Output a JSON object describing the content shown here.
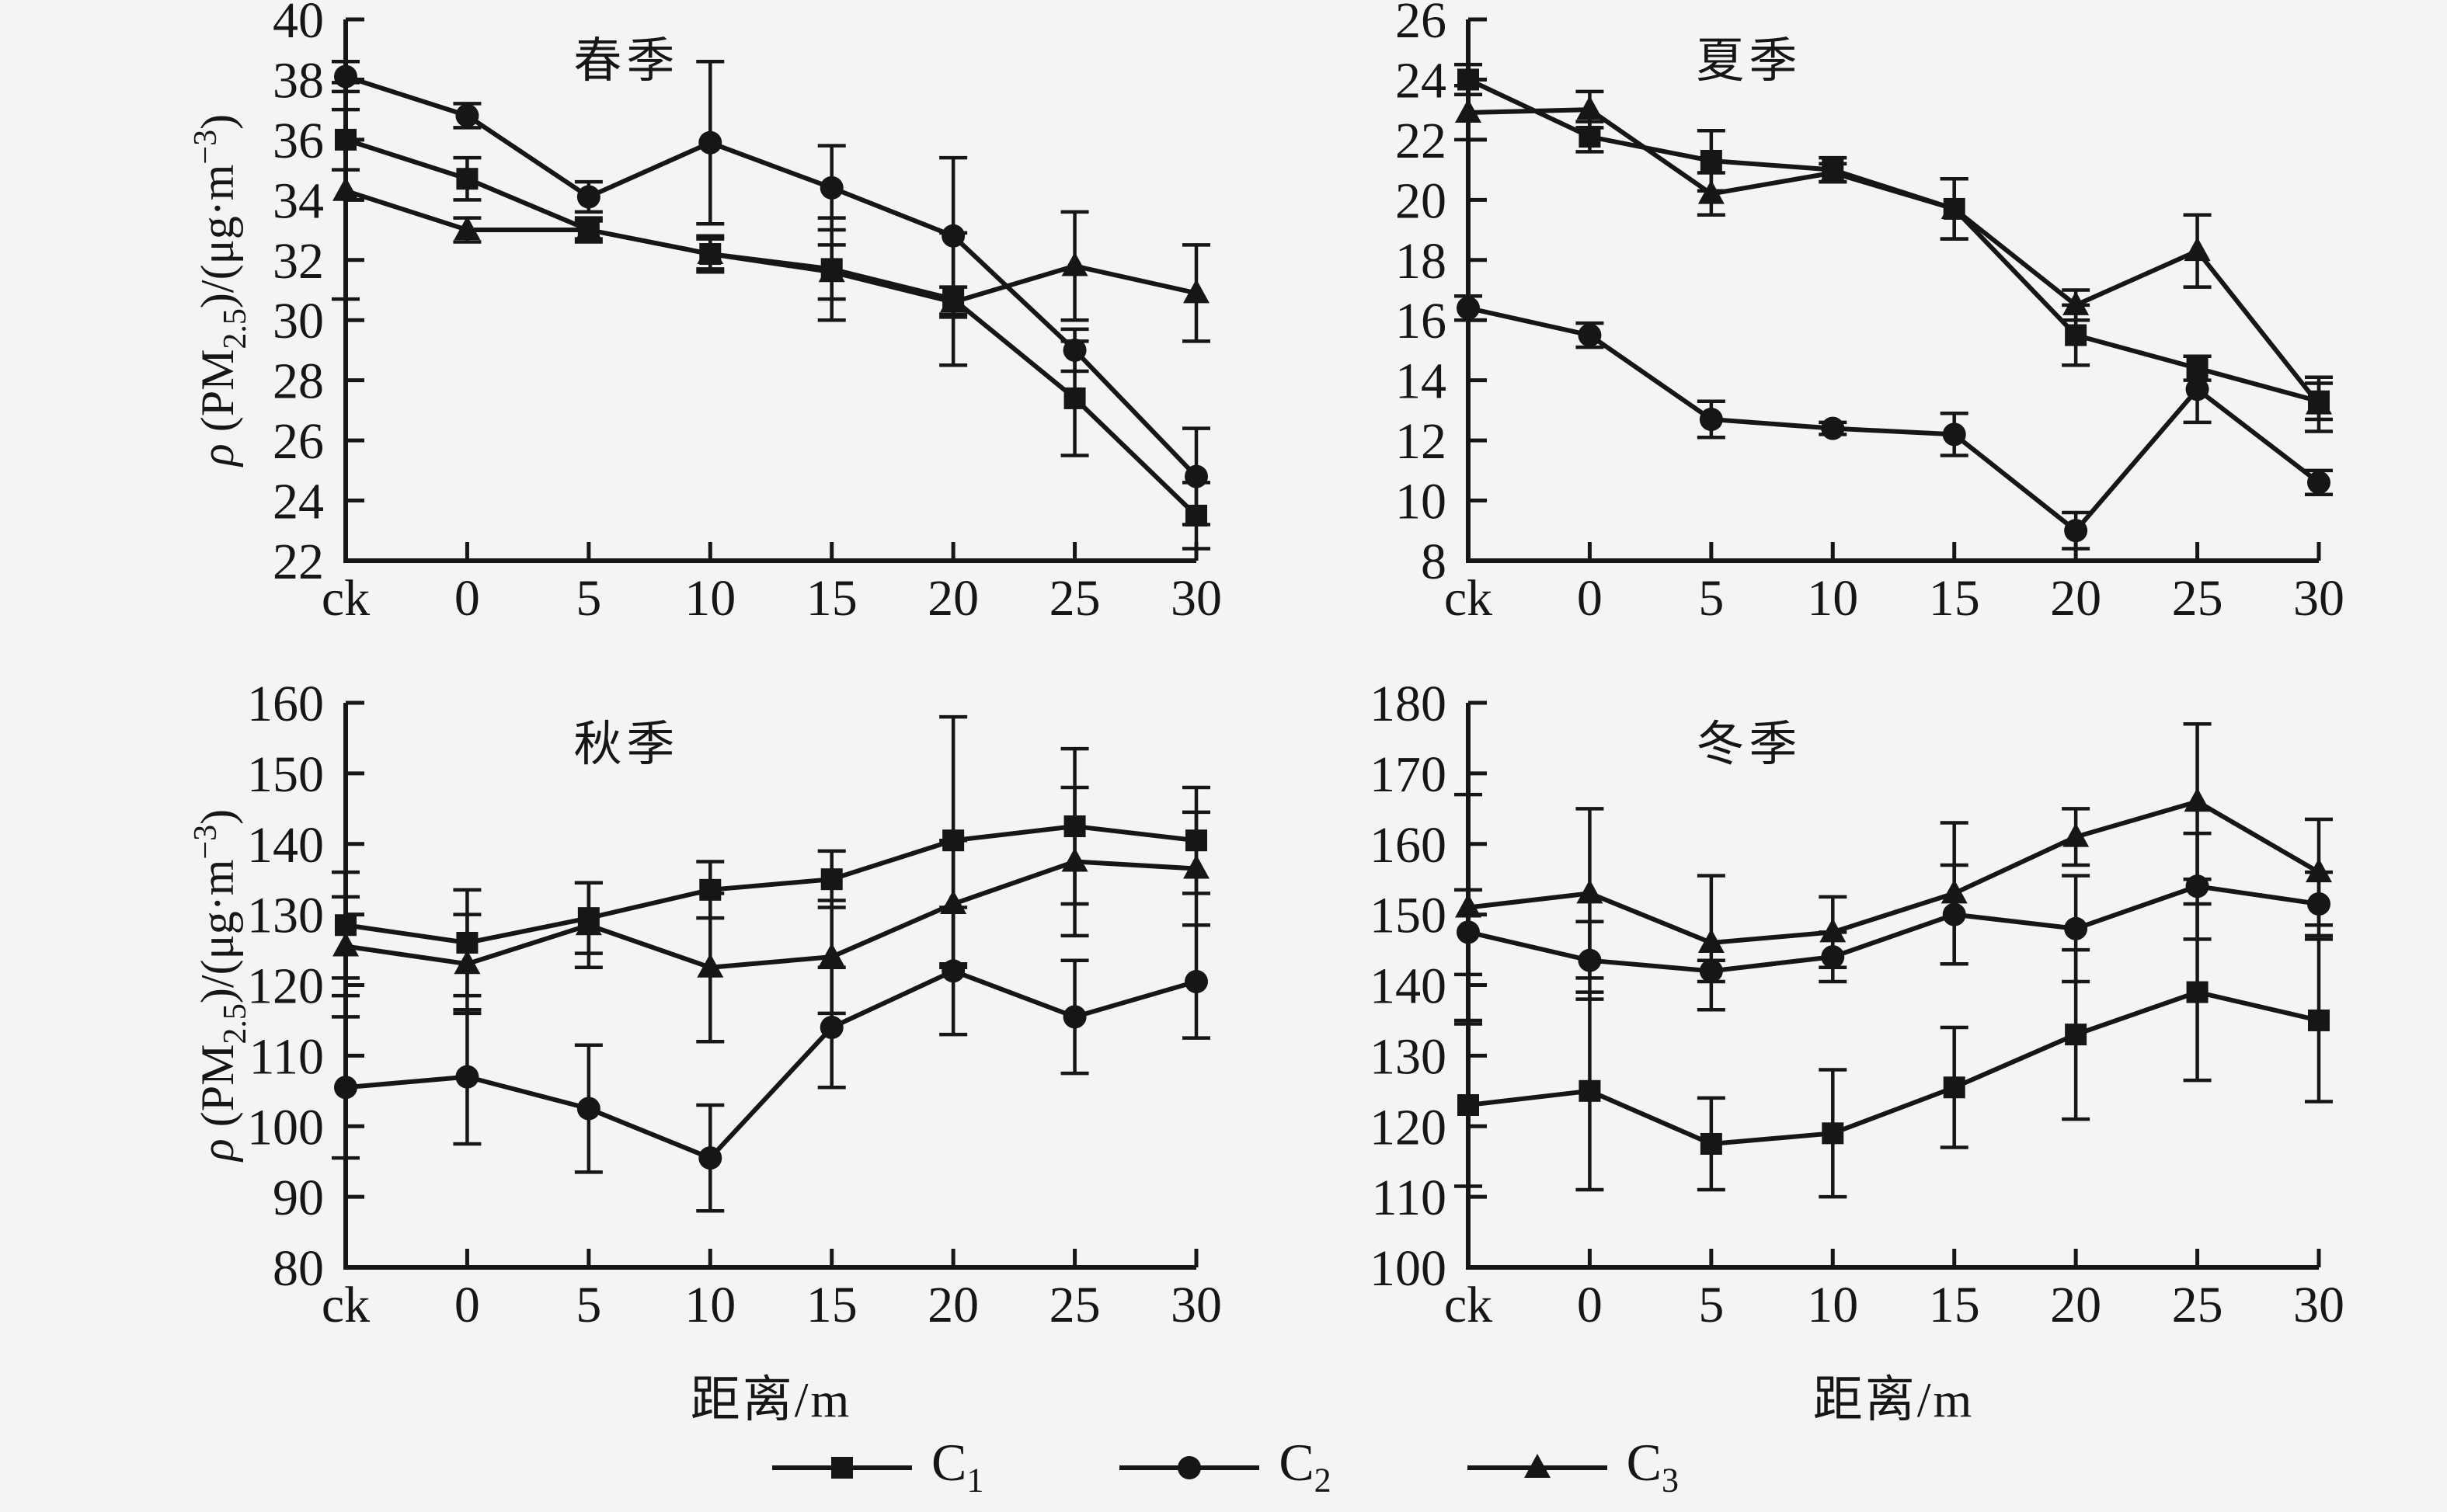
{
  "figure": {
    "xlabel": "距离/m",
    "ylabel": {
      "rho": "ρ",
      "open": " (PM",
      "sub": "2.5",
      "mid": ")/(μg·m",
      "sup": "−3",
      "close": ")"
    },
    "colors": {
      "background": "#f5f4f2",
      "ink": "#161616"
    }
  },
  "legend": [
    {
      "label": "C",
      "sub": "1",
      "marker": "square"
    },
    {
      "label": "C",
      "sub": "2",
      "marker": "circle"
    },
    {
      "label": "C",
      "sub": "3",
      "marker": "triangle"
    }
  ],
  "chart_data": [
    {
      "type": "line",
      "title": "春季",
      "position": "top-left",
      "categories": [
        "ck",
        "0",
        "5",
        "10",
        "15",
        "20",
        "25",
        "30"
      ],
      "ylim": [
        22,
        40
      ],
      "ytick_step": 2,
      "show_ylabel": true,
      "show_xlabel": false,
      "grid": false,
      "series": [
        {
          "name": "C1",
          "marker": "square",
          "values": [
            36.0,
            34.7,
            33.0,
            32.2,
            31.7,
            30.7,
            27.4,
            23.5
          ],
          "errors": [
            1.0,
            0.7,
            0.4,
            0.5,
            1.7,
            2.2,
            1.9,
            1.1
          ]
        },
        {
          "name": "C2",
          "marker": "circle",
          "values": [
            38.1,
            36.8,
            34.1,
            35.9,
            34.4,
            32.8,
            29.0,
            24.8
          ],
          "errors": [
            0.5,
            0.4,
            0.5,
            2.7,
            1.4,
            2.6,
            0.7,
            1.6
          ]
        },
        {
          "name": "C3",
          "marker": "triangle",
          "values": [
            34.3,
            33.0,
            33.0,
            32.2,
            31.6,
            30.6,
            31.8,
            30.9
          ],
          "errors": [
            3.6,
            0.4,
            0.3,
            0.6,
            0.9,
            0.5,
            1.8,
            1.6
          ]
        }
      ]
    },
    {
      "type": "line",
      "title": "夏季",
      "position": "top-right",
      "categories": [
        "ck",
        "0",
        "5",
        "10",
        "15",
        "20",
        "25",
        "30"
      ],
      "ylim": [
        8,
        26
      ],
      "ytick_step": 2,
      "show_ylabel": false,
      "show_xlabel": false,
      "grid": false,
      "series": [
        {
          "name": "C1",
          "marker": "square",
          "values": [
            24.0,
            22.1,
            21.3,
            21.0,
            19.7,
            15.5,
            14.4,
            13.3
          ],
          "errors": [
            0.5,
            0.5,
            1.0,
            0.4,
            1.0,
            1.0,
            0.4,
            0.6
          ]
        },
        {
          "name": "C2",
          "marker": "circle",
          "values": [
            16.4,
            15.5,
            12.7,
            12.4,
            12.2,
            9.0,
            13.7,
            10.6
          ],
          "errors": [
            0.4,
            0.4,
            0.6,
            0.2,
            0.7,
            0.6,
            1.1,
            0.4
          ]
        },
        {
          "name": "C3",
          "marker": "triangle",
          "values": [
            22.9,
            23.0,
            20.2,
            20.9,
            19.7,
            16.5,
            18.3,
            13.2
          ],
          "errors": [
            0.9,
            0.6,
            0.7,
            0.3,
            1.0,
            0.5,
            1.2,
            0.9
          ]
        }
      ]
    },
    {
      "type": "line",
      "title": "秋季",
      "position": "bottom-left",
      "categories": [
        "ck",
        "0",
        "5",
        "10",
        "15",
        "20",
        "25",
        "30"
      ],
      "ylim": [
        80,
        160
      ],
      "ytick_step": 10,
      "show_ylabel": true,
      "show_xlabel": true,
      "grid": false,
      "series": [
        {
          "name": "C1",
          "marker": "square",
          "values": [
            128.5,
            126.0,
            129.5,
            133.5,
            135.0,
            140.5,
            142.5,
            140.5
          ],
          "errors": [
            7.5,
            7.5,
            5.0,
            4.0,
            4.0,
            17.5,
            11.0,
            7.5
          ]
        },
        {
          "name": "C2",
          "marker": "circle",
          "values": [
            105.5,
            107.0,
            102.5,
            95.5,
            114.0,
            122.0,
            115.5,
            120.5
          ],
          "errors": [
            10.0,
            9.5,
            9.0,
            7.5,
            8.5,
            9.0,
            8.0,
            8.0
          ]
        },
        {
          "name": "C3",
          "marker": "triangle",
          "values": [
            125.5,
            123.0,
            128.5,
            122.5,
            124.0,
            131.5,
            137.5,
            136.5
          ],
          "errors": [
            7.0,
            7.0,
            6.0,
            10.5,
            8.0,
            9.0,
            10.5,
            8.0
          ]
        }
      ]
    },
    {
      "type": "line",
      "title": "冬季",
      "position": "bottom-right",
      "categories": [
        "ck",
        "0",
        "5",
        "10",
        "15",
        "20",
        "25",
        "30"
      ],
      "ylim": [
        100,
        180
      ],
      "ytick_step": 10,
      "show_ylabel": false,
      "show_xlabel": true,
      "grid": false,
      "series": [
        {
          "name": "C1",
          "marker": "square",
          "values": [
            123.0,
            125.0,
            117.5,
            119.0,
            125.5,
            133.0,
            139.0,
            135.0
          ],
          "errors": [
            11.5,
            14.0,
            6.5,
            9.0,
            8.5,
            12.0,
            12.5,
            11.5
          ]
        },
        {
          "name": "C2",
          "marker": "circle",
          "values": [
            147.5,
            143.5,
            142.0,
            144.0,
            150.0,
            148.0,
            154.0,
            151.5
          ],
          "errors": [
            6.0,
            5.5,
            1.5,
            3.5,
            7.0,
            7.5,
            7.5,
            4.5
          ]
        },
        {
          "name": "C3",
          "marker": "triangle",
          "values": [
            151.0,
            153.0,
            146.0,
            147.5,
            153.0,
            161.0,
            166.0,
            156.0
          ],
          "errors": [
            16.0,
            12.0,
            9.5,
            5.0,
            10.0,
            4.0,
            11.0,
            7.5
          ]
        }
      ]
    }
  ]
}
